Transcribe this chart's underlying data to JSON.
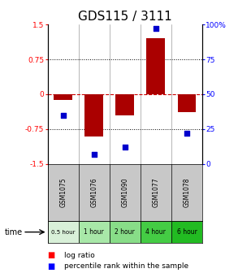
{
  "title": "GDS115 / 3111",
  "samples": [
    "GSM1075",
    "GSM1076",
    "GSM1090",
    "GSM1077",
    "GSM1078"
  ],
  "time_labels": [
    "0.5 hour",
    "1 hour",
    "2 hour",
    "4 hour",
    "6 hour"
  ],
  "log_ratios": [
    -0.13,
    -0.92,
    -0.45,
    1.2,
    -0.38
  ],
  "percentile_ranks": [
    0.35,
    0.07,
    0.12,
    0.97,
    0.22
  ],
  "ylim": [
    -1.5,
    1.5
  ],
  "yticks_left": [
    -1.5,
    -0.75,
    0,
    0.75,
    1.5
  ],
  "yticks_right_vals": [
    -1.5,
    -0.75,
    0,
    0.75,
    1.5
  ],
  "yticks_right_labels": [
    "0",
    "25",
    "50",
    "75",
    "100%"
  ],
  "bar_color": "#aa0000",
  "dot_color": "#0000cc",
  "zero_line_color": "#cc0000",
  "sample_bg_color": "#c8c8c8",
  "time_colors": [
    "#d8f0d8",
    "#a8e8a8",
    "#88dd88",
    "#44cc44",
    "#22bb22"
  ],
  "title_fontsize": 11
}
